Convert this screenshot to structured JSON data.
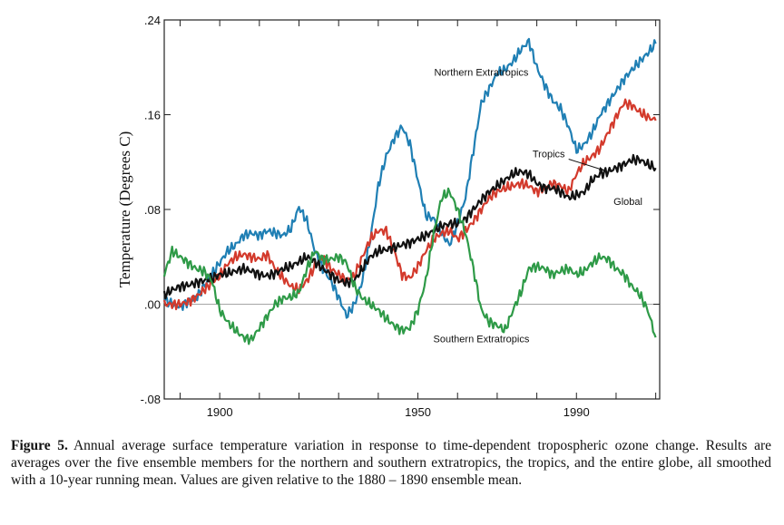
{
  "chart_data": {
    "type": "line",
    "ylabel": "Temperature  (Degrees C)",
    "xlabel": "",
    "xlim": [
      1886,
      2011
    ],
    "ylim": [
      -0.08,
      0.24
    ],
    "x_ticks": [
      1900,
      1950,
      1990
    ],
    "y_ticks": [
      {
        "value": -0.08,
        "label": "-.08"
      },
      {
        "value": 0.0,
        "label": ".00"
      },
      {
        "value": 0.08,
        "label": ".08"
      },
      {
        "value": 0.16,
        "label": ".16"
      },
      {
        "value": 0.24,
        "label": ".24"
      }
    ],
    "grid": false,
    "series": [
      {
        "name": "Northern Extratropics",
        "color": "#1f7fb4",
        "x": [
          1886,
          1888,
          1890,
          1892,
          1894,
          1896,
          1898,
          1900,
          1902,
          1904,
          1906,
          1908,
          1910,
          1912,
          1914,
          1916,
          1918,
          1920,
          1922,
          1924,
          1926,
          1928,
          1930,
          1932,
          1934,
          1936,
          1938,
          1940,
          1942,
          1944,
          1946,
          1948,
          1950,
          1952,
          1954,
          1956,
          1958,
          1960,
          1962,
          1964,
          1966,
          1968,
          1970,
          1972,
          1974,
          1976,
          1978,
          1980,
          1982,
          1984,
          1986,
          1988,
          1990,
          1992,
          1994,
          1996,
          1998,
          2000,
          2002,
          2004,
          2006,
          2008,
          2010
        ],
        "values": [
          0.004,
          0.0,
          -0.002,
          0.002,
          0.005,
          0.015,
          0.025,
          0.035,
          0.045,
          0.05,
          0.058,
          0.06,
          0.058,
          0.062,
          0.06,
          0.058,
          0.064,
          0.082,
          0.07,
          0.045,
          0.03,
          0.02,
          0.006,
          -0.01,
          0.0,
          0.02,
          0.055,
          0.1,
          0.125,
          0.14,
          0.15,
          0.135,
          0.105,
          0.075,
          0.072,
          0.06,
          0.05,
          0.068,
          0.09,
          0.13,
          0.17,
          0.182,
          0.195,
          0.198,
          0.205,
          0.215,
          0.222,
          0.2,
          0.185,
          0.172,
          0.165,
          0.15,
          0.13,
          0.135,
          0.145,
          0.16,
          0.17,
          0.18,
          0.19,
          0.198,
          0.205,
          0.212,
          0.22
        ]
      },
      {
        "name": "Tropics",
        "color": "#d33a2c",
        "x": [
          1886,
          1888,
          1890,
          1892,
          1894,
          1896,
          1898,
          1900,
          1902,
          1904,
          1906,
          1908,
          1910,
          1912,
          1914,
          1916,
          1918,
          1920,
          1922,
          1924,
          1926,
          1928,
          1930,
          1932,
          1934,
          1936,
          1938,
          1940,
          1942,
          1944,
          1946,
          1948,
          1950,
          1952,
          1954,
          1956,
          1958,
          1960,
          1962,
          1964,
          1966,
          1968,
          1970,
          1972,
          1974,
          1976,
          1978,
          1980,
          1982,
          1984,
          1986,
          1988,
          1990,
          1992,
          1994,
          1996,
          1998,
          2000,
          2002,
          2004,
          2006,
          2008,
          2010
        ],
        "values": [
          0.0,
          0.0,
          0.0,
          0.002,
          0.006,
          0.012,
          0.018,
          0.024,
          0.034,
          0.04,
          0.042,
          0.04,
          0.038,
          0.042,
          0.03,
          0.022,
          0.015,
          0.012,
          0.02,
          0.032,
          0.04,
          0.03,
          0.025,
          0.02,
          0.024,
          0.04,
          0.055,
          0.062,
          0.062,
          0.045,
          0.025,
          0.022,
          0.032,
          0.045,
          0.055,
          0.06,
          0.062,
          0.055,
          0.062,
          0.07,
          0.08,
          0.09,
          0.095,
          0.098,
          0.1,
          0.102,
          0.1,
          0.095,
          0.098,
          0.102,
          0.1,
          0.095,
          0.11,
          0.12,
          0.125,
          0.132,
          0.145,
          0.158,
          0.17,
          0.168,
          0.162,
          0.158,
          0.155
        ]
      },
      {
        "name": "Global",
        "color": "#111111",
        "x": [
          1886,
          1888,
          1890,
          1892,
          1894,
          1896,
          1898,
          1900,
          1902,
          1904,
          1906,
          1908,
          1910,
          1912,
          1914,
          1916,
          1918,
          1920,
          1922,
          1924,
          1926,
          1928,
          1930,
          1932,
          1934,
          1936,
          1938,
          1940,
          1942,
          1944,
          1946,
          1948,
          1950,
          1952,
          1954,
          1956,
          1958,
          1960,
          1962,
          1964,
          1966,
          1968,
          1970,
          1972,
          1974,
          1976,
          1978,
          1980,
          1982,
          1984,
          1986,
          1988,
          1990,
          1992,
          1994,
          1996,
          1998,
          2000,
          2002,
          2004,
          2006,
          2008,
          2010
        ],
        "values": [
          0.008,
          0.012,
          0.015,
          0.016,
          0.018,
          0.02,
          0.022,
          0.025,
          0.026,
          0.028,
          0.03,
          0.028,
          0.025,
          0.024,
          0.026,
          0.03,
          0.032,
          0.036,
          0.04,
          0.036,
          0.03,
          0.025,
          0.02,
          0.018,
          0.02,
          0.03,
          0.04,
          0.045,
          0.046,
          0.048,
          0.05,
          0.052,
          0.055,
          0.058,
          0.062,
          0.066,
          0.068,
          0.068,
          0.072,
          0.08,
          0.088,
          0.095,
          0.1,
          0.105,
          0.11,
          0.112,
          0.11,
          0.102,
          0.098,
          0.098,
          0.095,
          0.09,
          0.092,
          0.095,
          0.105,
          0.11,
          0.112,
          0.115,
          0.118,
          0.122,
          0.122,
          0.118,
          0.115
        ]
      },
      {
        "name": "Southern Extratropics",
        "color": "#2e9a47",
        "x": [
          1886,
          1888,
          1890,
          1892,
          1894,
          1896,
          1898,
          1900,
          1902,
          1904,
          1906,
          1908,
          1910,
          1912,
          1914,
          1916,
          1918,
          1920,
          1922,
          1924,
          1926,
          1928,
          1930,
          1932,
          1934,
          1936,
          1938,
          1940,
          1942,
          1944,
          1946,
          1948,
          1950,
          1952,
          1954,
          1956,
          1958,
          1960,
          1962,
          1964,
          1966,
          1968,
          1970,
          1972,
          1974,
          1976,
          1978,
          1980,
          1982,
          1984,
          1986,
          1988,
          1990,
          1992,
          1994,
          1996,
          1998,
          2000,
          2002,
          2004,
          2006,
          2008,
          2010
        ],
        "values": [
          0.025,
          0.045,
          0.04,
          0.035,
          0.03,
          0.028,
          0.02,
          -0.005,
          -0.015,
          -0.022,
          -0.028,
          -0.03,
          -0.02,
          -0.01,
          0.0,
          0.005,
          0.006,
          0.01,
          0.03,
          0.045,
          0.038,
          0.038,
          0.04,
          0.035,
          0.015,
          0.005,
          0.0,
          -0.005,
          -0.012,
          -0.018,
          -0.022,
          -0.02,
          -0.005,
          0.02,
          0.06,
          0.09,
          0.095,
          0.08,
          0.06,
          0.03,
          -0.005,
          -0.015,
          -0.018,
          -0.022,
          -0.005,
          0.01,
          0.03,
          0.032,
          0.03,
          0.025,
          0.028,
          0.03,
          0.025,
          0.028,
          0.035,
          0.04,
          0.038,
          0.03,
          0.025,
          0.015,
          0.008,
          -0.005,
          -0.028
        ]
      }
    ],
    "annotations": [
      {
        "text": "Northern Extratropics",
        "x": 1966,
        "y": 0.193,
        "series": "Northern Extratropics"
      },
      {
        "text": "Tropics",
        "x": 1983,
        "y": 0.124,
        "series": "Tropics",
        "arrow_to": [
          1997,
          0.113
        ]
      },
      {
        "text": "Global",
        "x": 2003,
        "y": 0.084,
        "series": "Global"
      },
      {
        "text": "Southern Extratropics",
        "x": 1966,
        "y": -0.032,
        "series": "Southern Extratropics"
      }
    ]
  },
  "caption": {
    "label": "Figure 5.",
    "text": "Annual average surface temperature variation in response to time-dependent tropospheric ozone change. Results are averages over the five ensemble members for the northern and southern extratropics, the tropics, and the entire globe, all smoothed with a 10-year running mean. Values are given relative to the 1880 – 1890 ensemble mean."
  }
}
